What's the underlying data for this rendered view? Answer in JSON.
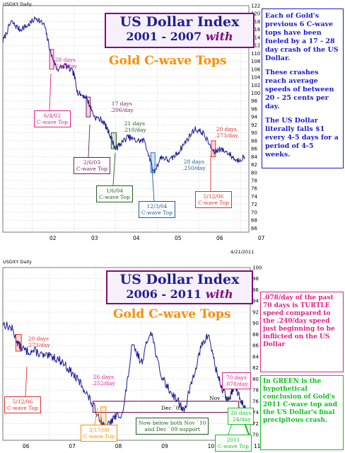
{
  "colors": {
    "series": "#1a1a99",
    "red": "#e0312c",
    "pink": "#e0218a",
    "purple": "#7a1f5f",
    "darkgreen": "#1f5f1f",
    "teal": "#1a7a3a",
    "blue": "#1f6fd0",
    "green": "#10c020",
    "orange": "#ff8c00"
  },
  "top": {
    "header_left": "USDXY Daily",
    "header_right": "",
    "title_line1": "US Dollar Index",
    "title_line2a": "2001 - 2007 ",
    "title_line2b": "with",
    "subtitle": "Gold C-wave Tops",
    "note_paragraphs": [
      "Each of Gold's previous 6 C-wave tops have been fueled by a 17 - 28 day crash of the US Dollar.",
      "These crashes reach average speeds of between 20 - 25 cents per day.",
      "The US Dollar literally falls $1 every 4-5 days for a period of 4-5 weeks."
    ],
    "annotations": [
      {
        "id": "a1",
        "lines": [
          "28 days",
          ".214/day"
        ],
        "color": "#e0218a"
      },
      {
        "id": "a2",
        "lines": [
          "17 days",
          ".206/day"
        ],
        "color": "#7a1f5f"
      },
      {
        "id": "a3",
        "lines": [
          "21 days",
          ".210/day"
        ],
        "color": "#1f5f1f"
      },
      {
        "id": "a4",
        "lines": [
          "28 days",
          ".250/day"
        ],
        "color": "#1a5a9a"
      },
      {
        "id": "a5",
        "lines": [
          "20 days",
          ".273/day"
        ],
        "color": "#e0312c"
      }
    ],
    "boxes": [
      {
        "id": "b1",
        "lines": [
          "6/4/02",
          "C-wave Top"
        ],
        "color": "#e0218a"
      },
      {
        "id": "b2",
        "lines": [
          "2/6/03",
          "C-wave Top"
        ],
        "color": "#7a1f5f"
      },
      {
        "id": "b3",
        "lines": [
          "1/6/04",
          "C-wave Top"
        ],
        "color": "#1f5f1f"
      },
      {
        "id": "b4",
        "lines": [
          "12/3/04",
          "C-wave Top"
        ],
        "color": "#1a5a9a"
      },
      {
        "id": "b5",
        "lines": [
          "5/12/06",
          "C-wave Top"
        ],
        "color": "#e0312c"
      }
    ]
  },
  "bottom": {
    "header_left": "USDXY Daily",
    "header_right": "4/21/2011",
    "title_line1": "US Dollar Index",
    "title_line2a": "2006 - 2011  ",
    "title_line2b": "with",
    "subtitle": "Gold C-wave Tops",
    "note_pink": ".078/day of the past 70 days is TURTLE speed compared to the .240/day speed just beginning to be inflicted on the US Dollar",
    "note_green": "In GREEN is the hypothetical conclusion of Gold's 2011 C-wave top and the US Dollar's final precipitous crash.",
    "annotations": [
      {
        "id": "c1",
        "lines": [
          "20 days",
          ".273/day"
        ],
        "color": "#e0312c"
      },
      {
        "id": "c2",
        "lines": [
          "26 days",
          ".252/day"
        ],
        "color": "#e0218a"
      },
      {
        "id": "c3",
        "lines": [
          "Dec `09"
        ],
        "color": "#000000"
      },
      {
        "id": "c4",
        "lines": [
          "Nov `10"
        ],
        "color": "#000000"
      }
    ],
    "boxes": [
      {
        "id": "d1",
        "lines": [
          "5/12/06",
          "C-wave Top"
        ],
        "color": "#e0312c"
      },
      {
        "id": "d2",
        "lines": [
          "3/17/08",
          "C-wave Top"
        ],
        "color": "#ff8c00"
      },
      {
        "id": "d3",
        "lines": [
          "Now below both Nov `10",
          "and Dec `09 support"
        ],
        "color": "#1f5f1f"
      },
      {
        "id": "d4",
        "lines": [
          "70 days",
          ".078/day"
        ],
        "color": "#e0218a"
      },
      {
        "id": "d5",
        "lines": [
          "26 days",
          ".24/day"
        ],
        "color": "#10c020"
      },
      {
        "id": "d6",
        "lines": [
          "2011",
          "C-wave Top"
        ],
        "color": "#10c020"
      }
    ]
  },
  "chart_data": [
    {
      "type": "line",
      "title": "US Dollar Index 2001 - 2007 with Gold C-wave Tops",
      "xlabel": "",
      "ylabel": "",
      "x_ticks": [
        "02",
        "03",
        "04",
        "05",
        "06",
        "07"
      ],
      "y_ticks": [
        66,
        68,
        70,
        72,
        74,
        76,
        78,
        80,
        82,
        84,
        86,
        88,
        90,
        92,
        94,
        96,
        98,
        100,
        102,
        104,
        106,
        108,
        110,
        112,
        114,
        116,
        118,
        120,
        122
      ],
      "ylim": [
        65,
        122
      ],
      "xlim": [
        2001.3,
        2007.2
      ],
      "grid": true,
      "series": [
        {
          "x": [
            2001.3,
            2001.5,
            2001.7,
            2001.9,
            2002.1,
            2002.3,
            2002.45,
            2002.6,
            2002.8,
            2003.0,
            2003.1,
            2003.3,
            2003.5,
            2003.7,
            2003.85,
            2004.0,
            2004.1,
            2004.3,
            2004.5,
            2004.7,
            2004.92,
            2005.1,
            2005.3,
            2005.5,
            2005.7,
            2005.9,
            2006.1,
            2006.36,
            2006.5,
            2006.7,
            2006.9,
            2007.1
          ],
          "y": [
            113,
            118,
            116,
            117,
            119,
            117,
            110,
            106,
            107,
            105,
            100,
            99,
            94,
            93,
            90,
            86,
            87,
            89,
            88,
            88,
            80,
            84,
            83,
            85,
            88,
            91,
            90,
            85,
            86,
            85,
            83,
            84
          ]
        }
      ],
      "shaded_ranges": [
        {
          "from": 2002.42,
          "to": 2002.52,
          "y_from": 106,
          "y_to": 111,
          "color": "#e0218a"
        },
        {
          "from": 2003.3,
          "to": 2003.4,
          "y_from": 94,
          "y_to": 99,
          "color": "#7a1f5f"
        },
        {
          "from": 2003.9,
          "to": 2004.02,
          "y_from": 86,
          "y_to": 90,
          "color": "#1f5f1f"
        },
        {
          "from": 2004.85,
          "to": 2004.95,
          "y_from": 80,
          "y_to": 85,
          "color": "#1f6fd0"
        },
        {
          "from": 2006.3,
          "to": 2006.4,
          "y_from": 84,
          "y_to": 88,
          "color": "#e0312c"
        }
      ]
    },
    {
      "type": "line",
      "title": "US Dollar Index 2006 - 2011 with Gold C-wave Tops",
      "xlabel": "",
      "ylabel": "",
      "x_ticks": [
        "06",
        "07",
        "08",
        "09",
        "10",
        "11"
      ],
      "y_ticks": [
        70,
        72,
        74,
        76,
        78,
        80,
        82,
        84,
        86,
        88,
        90,
        92,
        94,
        96,
        98,
        100
      ],
      "ylim": [
        69,
        100
      ],
      "xlim": [
        2006.0,
        2011.35
      ],
      "grid": true,
      "series": [
        {
          "x": [
            2006.0,
            2006.2,
            2006.35,
            2006.5,
            2006.7,
            2006.9,
            2007.1,
            2007.3,
            2007.5,
            2007.7,
            2007.9,
            2008.1,
            2008.21,
            2008.4,
            2008.6,
            2008.8,
            2009.0,
            2009.2,
            2009.4,
            2009.6,
            2009.8,
            2009.92,
            2010.1,
            2010.3,
            2010.45,
            2010.6,
            2010.75,
            2010.88,
            2011.0,
            2011.15,
            2011.3
          ],
          "y": [
            90,
            89,
            86,
            85,
            85,
            84,
            84,
            83,
            81,
            79,
            76,
            73,
            71,
            73,
            74,
            86,
            83,
            89,
            81,
            78,
            76,
            74,
            80,
            86,
            88,
            82,
            78,
            76,
            79,
            76,
            74
          ]
        }
      ],
      "shaded_ranges": [
        {
          "from": 2006.28,
          "to": 2006.4,
          "y_from": 85,
          "y_to": 88,
          "color": "#e0312c"
        },
        {
          "from": 2008.12,
          "to": 2008.23,
          "y_from": 71,
          "y_to": 75,
          "color": "#ff8c00"
        }
      ],
      "support_band": {
        "from": 2007.95,
        "to": 2011.1,
        "y_from": 74,
        "y_to": 76,
        "color": "#7a1f5f"
      },
      "projection": {
        "x": [
          2011.1,
          2011.32
        ],
        "y": [
          75,
          70
        ],
        "color": "#10c020"
      }
    }
  ]
}
